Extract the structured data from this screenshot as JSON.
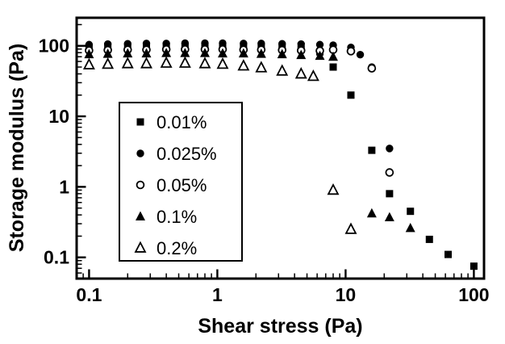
{
  "chart_data": {
    "type": "scatter",
    "title": "",
    "xlabel": "Shear stress (Pa)",
    "ylabel": "Storage modulus (Pa)",
    "x_scale": "log",
    "y_scale": "log",
    "xlim": [
      0.08,
      120
    ],
    "ylim": [
      0.05,
      250
    ],
    "x_major_ticks": [
      "0.1",
      "1",
      "10",
      "100"
    ],
    "y_major_ticks": [
      "0.1",
      "1",
      "10",
      "100"
    ],
    "grid": false,
    "legend_position": "middle-left",
    "colors": {
      "foreground": "#000000",
      "background": "#ffffff"
    },
    "series": [
      {
        "name": "0.01%",
        "marker": "filled-square",
        "points": [
          [
            0.1,
            93
          ],
          [
            0.14,
            95
          ],
          [
            0.2,
            96
          ],
          [
            0.28,
            97
          ],
          [
            0.4,
            98
          ],
          [
            0.56,
            98
          ],
          [
            0.8,
            98
          ],
          [
            1.1,
            98
          ],
          [
            1.6,
            97
          ],
          [
            2.2,
            96
          ],
          [
            3.2,
            94
          ],
          [
            4.5,
            90
          ],
          [
            6.3,
            82
          ],
          [
            8,
            50
          ],
          [
            11,
            20
          ],
          [
            16,
            3.3
          ],
          [
            22,
            0.8
          ],
          [
            32,
            0.45
          ],
          [
            45,
            0.18
          ],
          [
            63,
            0.11
          ],
          [
            100,
            0.075
          ]
        ]
      },
      {
        "name": "0.025%",
        "marker": "filled-circle",
        "points": [
          [
            0.1,
            104
          ],
          [
            0.14,
            106
          ],
          [
            0.2,
            107
          ],
          [
            0.28,
            108
          ],
          [
            0.4,
            108
          ],
          [
            0.56,
            109
          ],
          [
            0.8,
            109
          ],
          [
            1.1,
            109
          ],
          [
            1.6,
            108
          ],
          [
            2.2,
            108
          ],
          [
            3.2,
            107
          ],
          [
            4.5,
            106
          ],
          [
            6.3,
            104
          ],
          [
            8,
            102
          ],
          [
            11,
            95
          ],
          [
            13,
            75
          ],
          [
            16,
            50
          ],
          [
            22,
            3.5
          ]
        ]
      },
      {
        "name": "0.05%",
        "marker": "open-circle",
        "points": [
          [
            0.1,
            86
          ],
          [
            0.14,
            87
          ],
          [
            0.2,
            88
          ],
          [
            0.28,
            88
          ],
          [
            0.4,
            89
          ],
          [
            0.56,
            89
          ],
          [
            0.8,
            89
          ],
          [
            1.1,
            89
          ],
          [
            1.6,
            88
          ],
          [
            2.2,
            88
          ],
          [
            3.2,
            87
          ],
          [
            4.5,
            86
          ],
          [
            6.3,
            85
          ],
          [
            8,
            88
          ],
          [
            11,
            84
          ],
          [
            16,
            48
          ],
          [
            22,
            1.6
          ]
        ]
      },
      {
        "name": "0.1%",
        "marker": "filled-triangle",
        "points": [
          [
            0.1,
            76
          ],
          [
            0.14,
            77
          ],
          [
            0.2,
            78
          ],
          [
            0.28,
            78
          ],
          [
            0.4,
            79
          ],
          [
            0.56,
            79
          ],
          [
            0.8,
            79
          ],
          [
            1.1,
            78
          ],
          [
            1.6,
            78
          ],
          [
            2.2,
            77
          ],
          [
            3.2,
            76
          ],
          [
            4.5,
            74
          ],
          [
            6.3,
            72
          ],
          [
            8,
            70
          ],
          [
            16,
            0.42
          ],
          [
            22,
            0.37
          ],
          [
            32,
            0.26
          ]
        ]
      },
      {
        "name": "0.2%",
        "marker": "open-triangle",
        "points": [
          [
            0.1,
            54
          ],
          [
            0.14,
            55
          ],
          [
            0.2,
            56
          ],
          [
            0.28,
            56
          ],
          [
            0.4,
            57
          ],
          [
            0.56,
            57
          ],
          [
            0.8,
            56
          ],
          [
            1.1,
            55
          ],
          [
            1.6,
            52
          ],
          [
            2.2,
            49
          ],
          [
            3.2,
            44
          ],
          [
            4.5,
            40
          ],
          [
            5.6,
            37
          ],
          [
            8,
            0.9
          ],
          [
            11,
            0.25
          ]
        ]
      }
    ]
  }
}
